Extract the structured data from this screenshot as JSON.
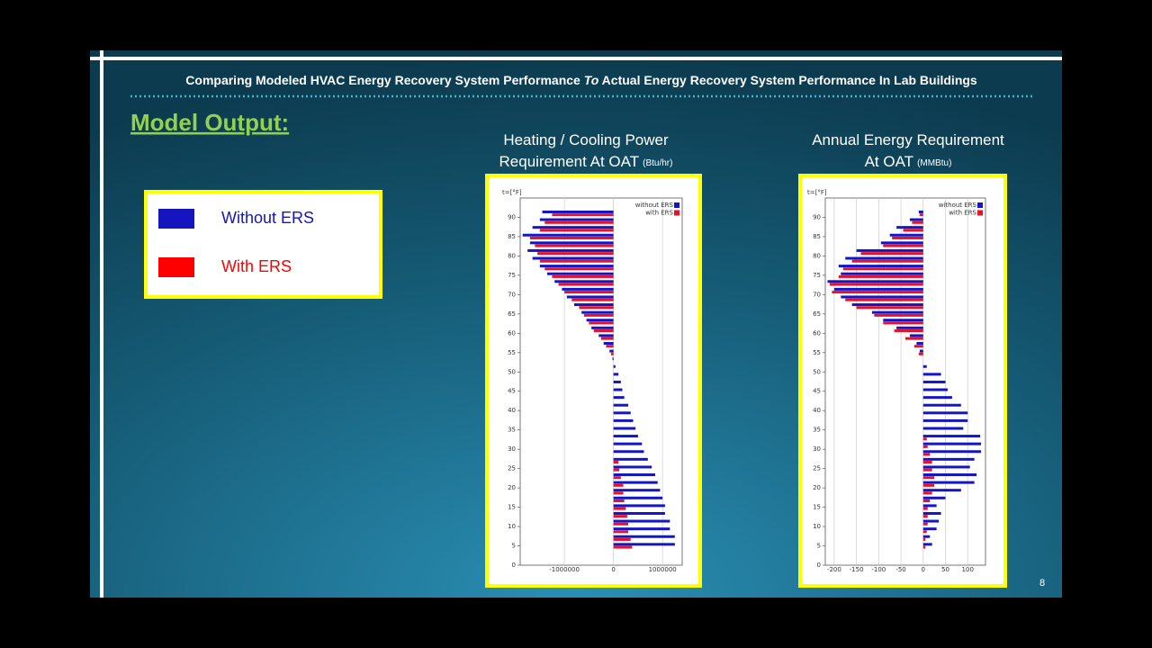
{
  "slide": {
    "title_parts": [
      "Comparing Modeled HVAC Energy Recovery System Performance ",
      "To",
      " Actual Energy Recovery System Performance In Lab Buildings"
    ],
    "heading": "Model Output:",
    "legend_box": {
      "items": [
        {
          "label": "Without ERS",
          "color": "#1515c0"
        },
        {
          "label": "With ERS",
          "color": "#ff0000"
        }
      ]
    },
    "page_number": "8"
  },
  "chart_data": [
    {
      "type": "hbar",
      "title_lines": [
        "Heating / Cooling Power",
        "Requirement  At  OAT"
      ],
      "unit": "(Btu/hr)",
      "y_label": "t=[°F]",
      "categories": [
        5,
        7,
        9,
        11,
        13,
        15,
        17,
        19,
        21,
        23,
        25,
        27,
        29,
        31,
        33,
        35,
        37,
        39,
        41,
        43,
        45,
        47,
        49,
        51,
        53,
        55,
        57,
        59,
        61,
        63,
        65,
        67,
        69,
        71,
        73,
        75,
        77,
        79,
        81,
        83,
        85,
        87,
        89,
        91
      ],
      "series": [
        {
          "name": "without ERS",
          "color": "#1515c8",
          "values": [
            1250000,
            1250000,
            1150000,
            1150000,
            1050000,
            1050000,
            1000000,
            950000,
            900000,
            850000,
            780000,
            700000,
            620000,
            580000,
            500000,
            450000,
            400000,
            350000,
            300000,
            220000,
            180000,
            150000,
            100000,
            40000,
            -20000,
            -80000,
            -200000,
            -300000,
            -450000,
            -550000,
            -650000,
            -800000,
            -950000,
            -1050000,
            -1200000,
            -1350000,
            -1500000,
            -1650000,
            -1750000,
            -1700000,
            -1850000,
            -1650000,
            -1500000,
            -1450000
          ]
        },
        {
          "name": "with ERS",
          "color": "#e8102a",
          "values": [
            380000,
            350000,
            300000,
            300000,
            280000,
            250000,
            220000,
            200000,
            200000,
            150000,
            120000,
            100000,
            0,
            0,
            0,
            0,
            0,
            0,
            0,
            0,
            0,
            0,
            0,
            0,
            0,
            -50000,
            -150000,
            -250000,
            -400000,
            -500000,
            -600000,
            -700000,
            -850000,
            -1000000,
            -1120000,
            -1250000,
            -1400000,
            -1500000,
            -1550000,
            -1600000,
            -1700000,
            -1500000,
            -1400000,
            -1250000
          ]
        }
      ],
      "xlim": [
        -1900000,
        1400000
      ],
      "xticks": [
        -1000000,
        0,
        1000000
      ],
      "ylim": [
        0,
        95
      ],
      "yticks": [
        0,
        5,
        10,
        15,
        20,
        25,
        30,
        35,
        40,
        45,
        50,
        55,
        60,
        65,
        70,
        75,
        80,
        85,
        90
      ],
      "grid": true,
      "legend": "upper right"
    },
    {
      "type": "hbar",
      "title_lines": [
        "Annual Energy Requirement",
        "At  OAT"
      ],
      "unit": "(MMBtu)",
      "y_label": "t=[°F]",
      "categories": [
        5,
        7,
        9,
        11,
        13,
        15,
        17,
        19,
        21,
        23,
        25,
        27,
        29,
        31,
        33,
        35,
        37,
        39,
        41,
        43,
        45,
        47,
        49,
        51,
        53,
        55,
        57,
        59,
        61,
        63,
        65,
        67,
        69,
        71,
        73,
        75,
        77,
        79,
        81,
        83,
        85,
        87,
        89,
        91
      ],
      "series": [
        {
          "name": "without ERS",
          "color": "#1515c8",
          "values": [
            20,
            15,
            30,
            35,
            40,
            30,
            50,
            85,
            115,
            120,
            105,
            115,
            130,
            130,
            128,
            90,
            100,
            100,
            85,
            65,
            55,
            50,
            40,
            8,
            0,
            -8,
            -15,
            -30,
            -60,
            -90,
            -115,
            -160,
            -185,
            -200,
            -215,
            -185,
            -190,
            -175,
            -150,
            -95,
            -75,
            -60,
            -30,
            -10
          ]
        },
        {
          "name": "with ERS",
          "color": "#e8102a",
          "values": [
            5,
            5,
            8,
            10,
            10,
            10,
            15,
            20,
            25,
            25,
            20,
            20,
            15,
            10,
            8,
            0,
            0,
            0,
            0,
            0,
            0,
            0,
            0,
            0,
            0,
            -10,
            -20,
            -40,
            -65,
            -90,
            -110,
            -150,
            -175,
            -205,
            -210,
            -190,
            -180,
            -160,
            -140,
            -90,
            -70,
            -45,
            -25,
            -8
          ]
        }
      ],
      "xlim": [
        -220,
        140
      ],
      "xticks": [
        -200,
        -150,
        -100,
        -50,
        0,
        50,
        100
      ],
      "ylim": [
        0,
        95
      ],
      "yticks": [
        0,
        5,
        10,
        15,
        20,
        25,
        30,
        35,
        40,
        45,
        50,
        55,
        60,
        65,
        70,
        75,
        80,
        85,
        90
      ],
      "grid": true,
      "legend": "upper right"
    }
  ]
}
